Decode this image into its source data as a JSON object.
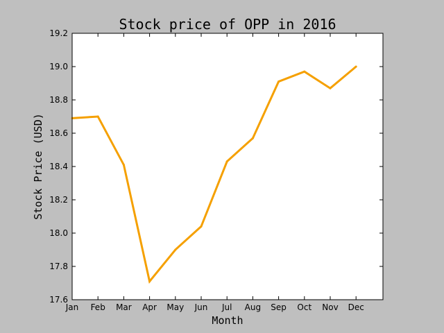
{
  "chart_data": {
    "type": "line",
    "title": "Stock price of OPP in 2016",
    "xlabel": "Month",
    "ylabel": "Stock Price (USD)",
    "categories": [
      "Jan",
      "Feb",
      "Mar",
      "Apr",
      "May",
      "Jun",
      "Jul",
      "Aug",
      "Sep",
      "Oct",
      "Nov",
      "Dec"
    ],
    "series": [
      {
        "values": [
          18.69,
          18.7,
          18.41,
          17.71,
          17.9,
          18.04,
          18.43,
          18.57,
          18.91,
          18.97,
          18.87,
          19.0
        ],
        "color": "#f5a000"
      }
    ],
    "ylim": [
      17.6,
      19.2
    ],
    "yticks": [
      "17.6",
      "17.8",
      "18.0",
      "18.2",
      "18.4",
      "18.6",
      "18.8",
      "19.0",
      "19.2"
    ],
    "grid": false,
    "legend": "none"
  }
}
